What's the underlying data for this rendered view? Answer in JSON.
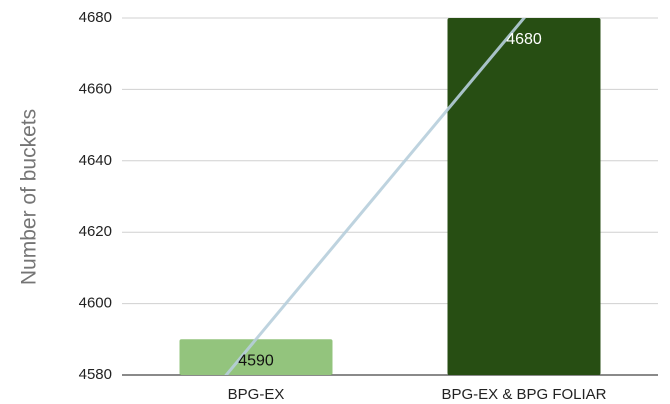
{
  "chart_data": {
    "type": "bar",
    "categories": [
      "BPG-EX",
      "BPG-EX & BPG FOLIAR"
    ],
    "values": [
      4590,
      4680
    ],
    "data_labels": [
      "4590",
      "4680"
    ],
    "bar_colors": [
      "#93c47d",
      "#274e13"
    ],
    "data_label_colors": [
      "#111111",
      "#ffffff"
    ],
    "ylabel": "Number of buckets",
    "ylim": [
      4580,
      4680
    ],
    "yticks": [
      4580,
      4600,
      4620,
      4640,
      4660,
      4680
    ],
    "grid": true,
    "trendline": {
      "type": "linear",
      "color": "#b7cfdc"
    }
  }
}
